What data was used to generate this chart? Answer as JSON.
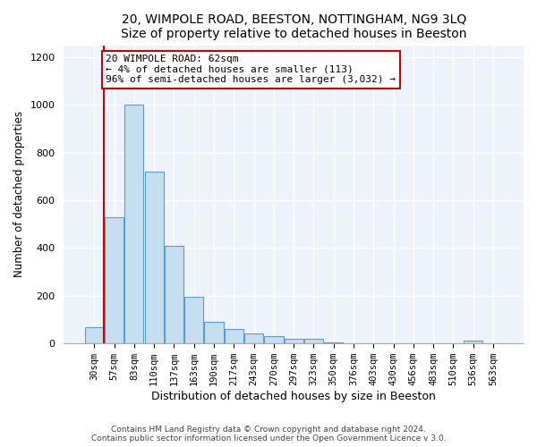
{
  "title1": "20, WIMPOLE ROAD, BEESTON, NOTTINGHAM, NG9 3LQ",
  "title2": "Size of property relative to detached houses in Beeston",
  "xlabel": "Distribution of detached houses by size in Beeston",
  "ylabel": "Number of detached properties",
  "bar_labels": [
    "30sqm",
    "57sqm",
    "83sqm",
    "110sqm",
    "137sqm",
    "163sqm",
    "190sqm",
    "217sqm",
    "243sqm",
    "270sqm",
    "297sqm",
    "323sqm",
    "350sqm",
    "376sqm",
    "403sqm",
    "430sqm",
    "456sqm",
    "483sqm",
    "510sqm",
    "536sqm",
    "563sqm"
  ],
  "bar_values": [
    70,
    530,
    1000,
    720,
    410,
    197,
    90,
    60,
    43,
    32,
    18,
    20,
    5,
    0,
    0,
    0,
    0,
    0,
    0,
    12,
    0
  ],
  "bar_color": "#c5dff0",
  "bar_edge_color": "#5b9bd5",
  "annotation_title": "20 WIMPOLE ROAD: 62sqm",
  "annotation_line1": "← 4% of detached houses are smaller (113)",
  "annotation_line2": "96% of semi-detached houses are larger (3,032) →",
  "vline_color": "#cc0000",
  "ylim": [
    0,
    1250
  ],
  "yticks": [
    0,
    200,
    400,
    600,
    800,
    1000,
    1200
  ],
  "footer1": "Contains HM Land Registry data © Crown copyright and database right 2024.",
  "footer2": "Contains public sector information licensed under the Open Government Licence v 3.0.",
  "background_color": "#ffffff",
  "plot_background": "#eef2fa",
  "grid_color": "#ffffff",
  "title_fontsize": 10,
  "ylabel_fontsize": 8.5,
  "xlabel_fontsize": 9
}
